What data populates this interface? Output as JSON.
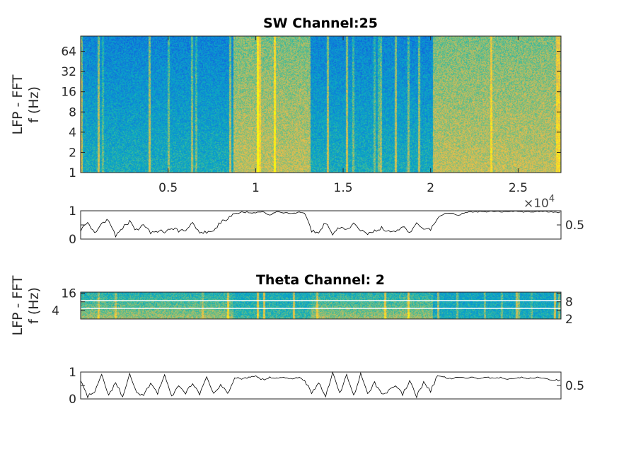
{
  "chart_data": [
    {
      "type": "heatmap",
      "title": "SW Channel:25",
      "ylabel": [
        "LFP - FFT",
        "f (Hz)"
      ],
      "yscale": "log2",
      "ylim": [
        1,
        108
      ],
      "yticks": [
        "1",
        "2",
        "4",
        "8",
        "16",
        "32",
        "64"
      ],
      "ytick_values": [
        1,
        2,
        4,
        8,
        16,
        32,
        64
      ],
      "xlim": [
        0,
        2.745
      ],
      "xticks": [
        "0.5",
        "1",
        "1.5",
        "2",
        "2.5"
      ],
      "xtick_values": [
        0.5,
        1,
        1.5,
        2,
        2.5
      ],
      "x_exponent": "×10",
      "x_exponent_power": "4",
      "states": [
        {
          "start": 0,
          "end": 0.87,
          "state": "low"
        },
        {
          "start": 0.87,
          "end": 1.31,
          "state": "high"
        },
        {
          "start": 1.31,
          "end": 2.01,
          "state": "low"
        },
        {
          "start": 2.01,
          "end": 2.745,
          "state": "high"
        }
      ]
    },
    {
      "type": "line",
      "ylim": [
        0,
        1
      ],
      "yticks": [
        "0",
        "0.5",
        "1"
      ],
      "ytick_values": [
        0,
        0.5,
        1
      ],
      "xlim": [
        0,
        2.745
      ],
      "x_step": 0.04,
      "values": [
        0.3,
        0.6,
        0.2,
        0.5,
        0.7,
        0.1,
        0.4,
        0.6,
        0.3,
        0.5,
        0.2,
        0.3,
        0.25,
        0.4,
        0.3,
        0.3,
        0.6,
        0.2,
        0.25,
        0.3,
        0.6,
        0.7,
        0.9,
        0.95,
        0.95,
        0.93,
        0.95,
        0.85,
        0.95,
        0.94,
        0.9,
        0.95,
        0.93,
        0.3,
        0.25,
        0.6,
        0.2,
        0.4,
        0.3,
        0.55,
        0.3,
        0.2,
        0.3,
        0.4,
        0.25,
        0.3,
        0.45,
        0.2,
        0.6,
        0.3,
        0.35,
        0.75,
        0.9,
        0.9,
        0.85,
        0.95,
        0.96,
        0.97,
        0.97,
        0.98,
        0.97,
        0.98,
        0.98,
        0.97,
        0.97,
        0.98,
        0.98,
        0.97,
        0.95
      ]
    },
    {
      "type": "heatmap",
      "title": "Theta Channel: 2",
      "ylabel": [
        "LFP - FFT",
        "f (Hz)"
      ],
      "yscale": "log2",
      "ylim": [
        2,
        17.5
      ],
      "yticks": [
        "2",
        "4",
        "8",
        "16"
      ],
      "ytick_values": [
        2,
        4,
        8,
        16
      ],
      "xlim": [
        0,
        2.745
      ],
      "states": [
        {
          "start": 0,
          "end": 0.87,
          "state": "high"
        },
        {
          "start": 0.87,
          "end": 1.31,
          "state": "mid"
        },
        {
          "start": 1.31,
          "end": 2.01,
          "state": "high"
        },
        {
          "start": 2.01,
          "end": 2.745,
          "state": "low"
        }
      ]
    },
    {
      "type": "line",
      "ylim": [
        0,
        1
      ],
      "yticks": [
        "0",
        "0.5",
        "1"
      ],
      "ytick_values": [
        0,
        0.5,
        1
      ],
      "xlim": [
        0,
        2.745
      ],
      "x_step": 0.04,
      "values": [
        0.7,
        0.1,
        0.3,
        0.9,
        0.1,
        0.6,
        0.1,
        0.95,
        0.2,
        0.1,
        0.6,
        0.2,
        0.9,
        0.1,
        0.5,
        0.2,
        0.6,
        0.15,
        0.8,
        0.2,
        0.5,
        0.2,
        0.8,
        0.75,
        0.8,
        0.85,
        0.7,
        0.8,
        0.78,
        0.82,
        0.75,
        0.8,
        0.7,
        0.2,
        0.6,
        0.1,
        1.0,
        0.2,
        0.9,
        0.1,
        0.95,
        0.2,
        0.6,
        0.15,
        0.3,
        0.5,
        0.15,
        0.7,
        0.1,
        0.6,
        0.3,
        0.85,
        0.8,
        0.75,
        0.82,
        0.78,
        0.8,
        0.75,
        0.8,
        0.77,
        0.8,
        0.72,
        0.78,
        0.8,
        0.75,
        0.8,
        0.78,
        0.72,
        0.7
      ]
    }
  ],
  "colors": {
    "low": "#1a86d6",
    "mid": "#22aeb0",
    "high": "#d9b43a",
    "line": "#000000"
  }
}
